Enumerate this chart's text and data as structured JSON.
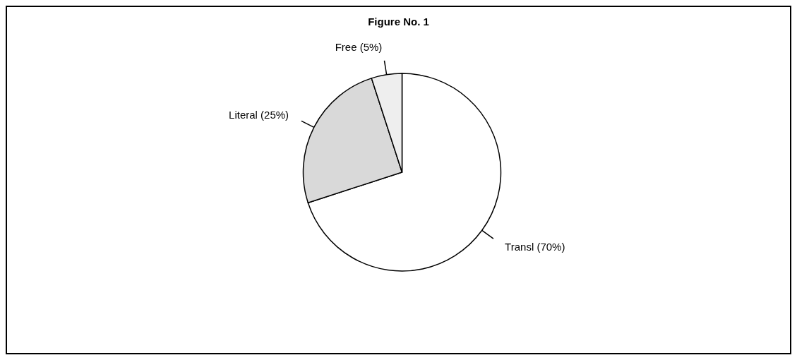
{
  "chart_data": {
    "type": "pie",
    "title": "Figure No. 1",
    "categories": [
      "Transl (70%)",
      "Literal (25%)",
      "Free (5%)"
    ],
    "values": [
      70,
      25,
      5
    ],
    "colors": [
      "#ffffff",
      "#d9d9d9",
      "#eeeeee"
    ],
    "legend": false
  }
}
